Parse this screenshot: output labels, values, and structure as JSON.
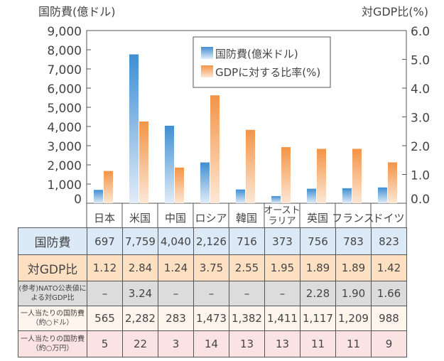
{
  "chart_data": {
    "type": "bar",
    "left_axis_title": "国防費(億ドル)",
    "right_axis_title": "対GDP比(%)",
    "left_ticks": [
      "0",
      "1,000",
      "2,000",
      "3,000",
      "4,000",
      "5,000",
      "6,000",
      "7,000",
      "8,000",
      "9,000"
    ],
    "right_ticks": [
      "0.0",
      "1.0",
      "2.0",
      "3.0",
      "4.0",
      "5.0",
      "6.0"
    ],
    "ylim_left": [
      0,
      9000
    ],
    "ylim_right": [
      0,
      6
    ],
    "categories": [
      "日本",
      "米国",
      "中国",
      "ロシア",
      "韓国",
      "オースト\nラリア",
      "英国",
      "フランス",
      "ドイツ"
    ],
    "series": [
      {
        "name": "国防費(億米ドル)",
        "axis": "left",
        "color": "#3f8fd2",
        "values": [
          697,
          7759,
          4040,
          2126,
          716,
          373,
          756,
          783,
          823
        ]
      },
      {
        "name": "GDPに対する比率(%)",
        "axis": "right",
        "color": "#f39447",
        "values": [
          1.12,
          2.84,
          1.24,
          3.75,
          2.55,
          1.95,
          1.89,
          1.89,
          1.42
        ]
      }
    ],
    "legend_position": "top-right"
  },
  "table": {
    "rows": [
      {
        "label": "国防費",
        "cells": [
          "697",
          "7,759",
          "4,040",
          "2,126",
          "716",
          "373",
          "756",
          "783",
          "823"
        ]
      },
      {
        "label": "対GDP比",
        "cells": [
          "1.12",
          "2.84",
          "1.24",
          "3.75",
          "2.55",
          "1.95",
          "1.89",
          "1.89",
          "1.42"
        ]
      },
      {
        "label": "(参考)NATO公表値による対GDP比",
        "cells": [
          "–",
          "3.24",
          "–",
          "–",
          "–",
          "–",
          "2.28",
          "1.90",
          "1.66"
        ]
      },
      {
        "label": "一人当たりの国防費（約○ドル）",
        "cells": [
          "565",
          "2,282",
          "283",
          "1,473",
          "1,382",
          "1,411",
          "1,117",
          "1,209",
          "988"
        ]
      },
      {
        "label": "一人当たりの国防費（約○万円）",
        "cells": [
          "5",
          "22",
          "3",
          "14",
          "13",
          "13",
          "11",
          "11",
          "9"
        ]
      }
    ]
  }
}
